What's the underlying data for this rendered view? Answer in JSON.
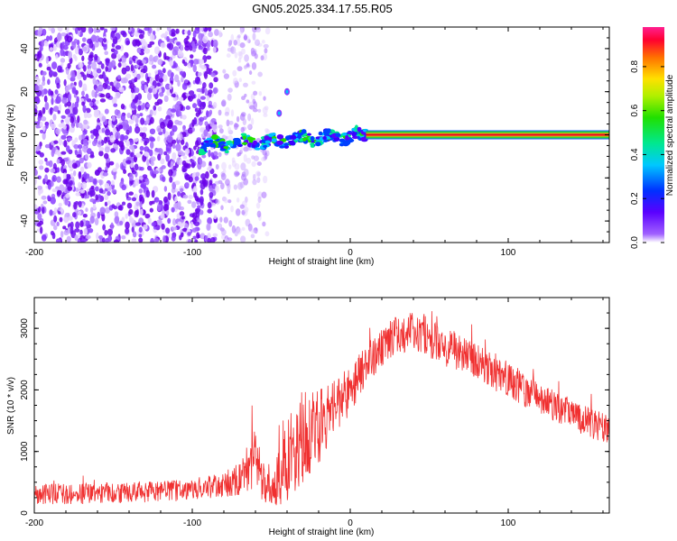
{
  "title": "GN05.2025.334.17.55.R05",
  "colors": {
    "spectrogram_low": "#7a00ff",
    "snr_line": "#f03030",
    "line_band": "#2bd43c",
    "line_core": "#e0002a",
    "axis": "#000000",
    "background": "#ffffff"
  },
  "chart_data": [
    {
      "type": "heatmap",
      "name": "spectrogram",
      "xlabel": "Height of straight line (km)",
      "ylabel": "Frequency (Hz)",
      "xlim": [
        -200,
        164
      ],
      "ylim": [
        -50,
        50
      ],
      "xticks": [
        -200,
        -100,
        0,
        100
      ],
      "yticks": [
        -40,
        -20,
        0,
        20,
        40
      ],
      "description_regions": [
        {
          "x_range": [
            -200,
            -85
          ],
          "freq_range": [
            -50,
            50
          ],
          "amplitude": 0.05,
          "kind": "noise"
        },
        {
          "x_range": [
            -85,
            -52
          ],
          "freq_range": [
            -50,
            50
          ],
          "amplitude": 0.02,
          "kind": "sparse-noise"
        },
        {
          "x_range": [
            -95,
            10
          ],
          "freq_center": [
            -5,
            0
          ],
          "amplitude": 0.5,
          "kind": "meteor-head-track"
        },
        {
          "x_range": [
            10,
            164
          ],
          "freq_center": 0,
          "amplitude": 1.0,
          "kind": "straight-line"
        }
      ],
      "colorbar": {
        "label": "Normalized spectral amplitude",
        "range": [
          0,
          0.98
        ],
        "ticks": [
          "0.0",
          "0.2",
          "0.4",
          "0.6",
          "0.8"
        ]
      }
    },
    {
      "type": "line",
      "name": "snr",
      "xlabel": "Height of straight line (km)",
      "ylabel": "SNR (10 * v/v)",
      "xlim": [
        -200,
        164
      ],
      "ylim": [
        0,
        3500
      ],
      "xticks": [
        -200,
        -100,
        0,
        100
      ],
      "yticks": [
        0,
        1000,
        2000,
        3000
      ],
      "series": [
        {
          "x": [
            -200,
            -180,
            -160,
            -140,
            -120,
            -100,
            -90,
            -80,
            -70,
            -65,
            -60,
            -55,
            -50,
            -40,
            -30,
            -20,
            -10,
            0,
            10,
            20,
            30,
            40,
            50,
            60,
            80,
            100,
            120,
            140,
            164
          ],
          "y": [
            300,
            310,
            320,
            330,
            350,
            380,
            420,
            460,
            560,
            750,
            900,
            450,
            300,
            900,
            1200,
            1400,
            1700,
            2000,
            2400,
            2700,
            2900,
            2950,
            2850,
            2700,
            2450,
            2150,
            1850,
            1600,
            1350
          ],
          "noise": [
            170,
            170,
            170,
            170,
            170,
            180,
            190,
            200,
            280,
            450,
            500,
            300,
            250,
            700,
            700,
            600,
            450,
            400,
            320,
            320,
            320,
            320,
            320,
            320,
            300,
            280,
            260,
            260,
            260
          ]
        }
      ]
    }
  ]
}
